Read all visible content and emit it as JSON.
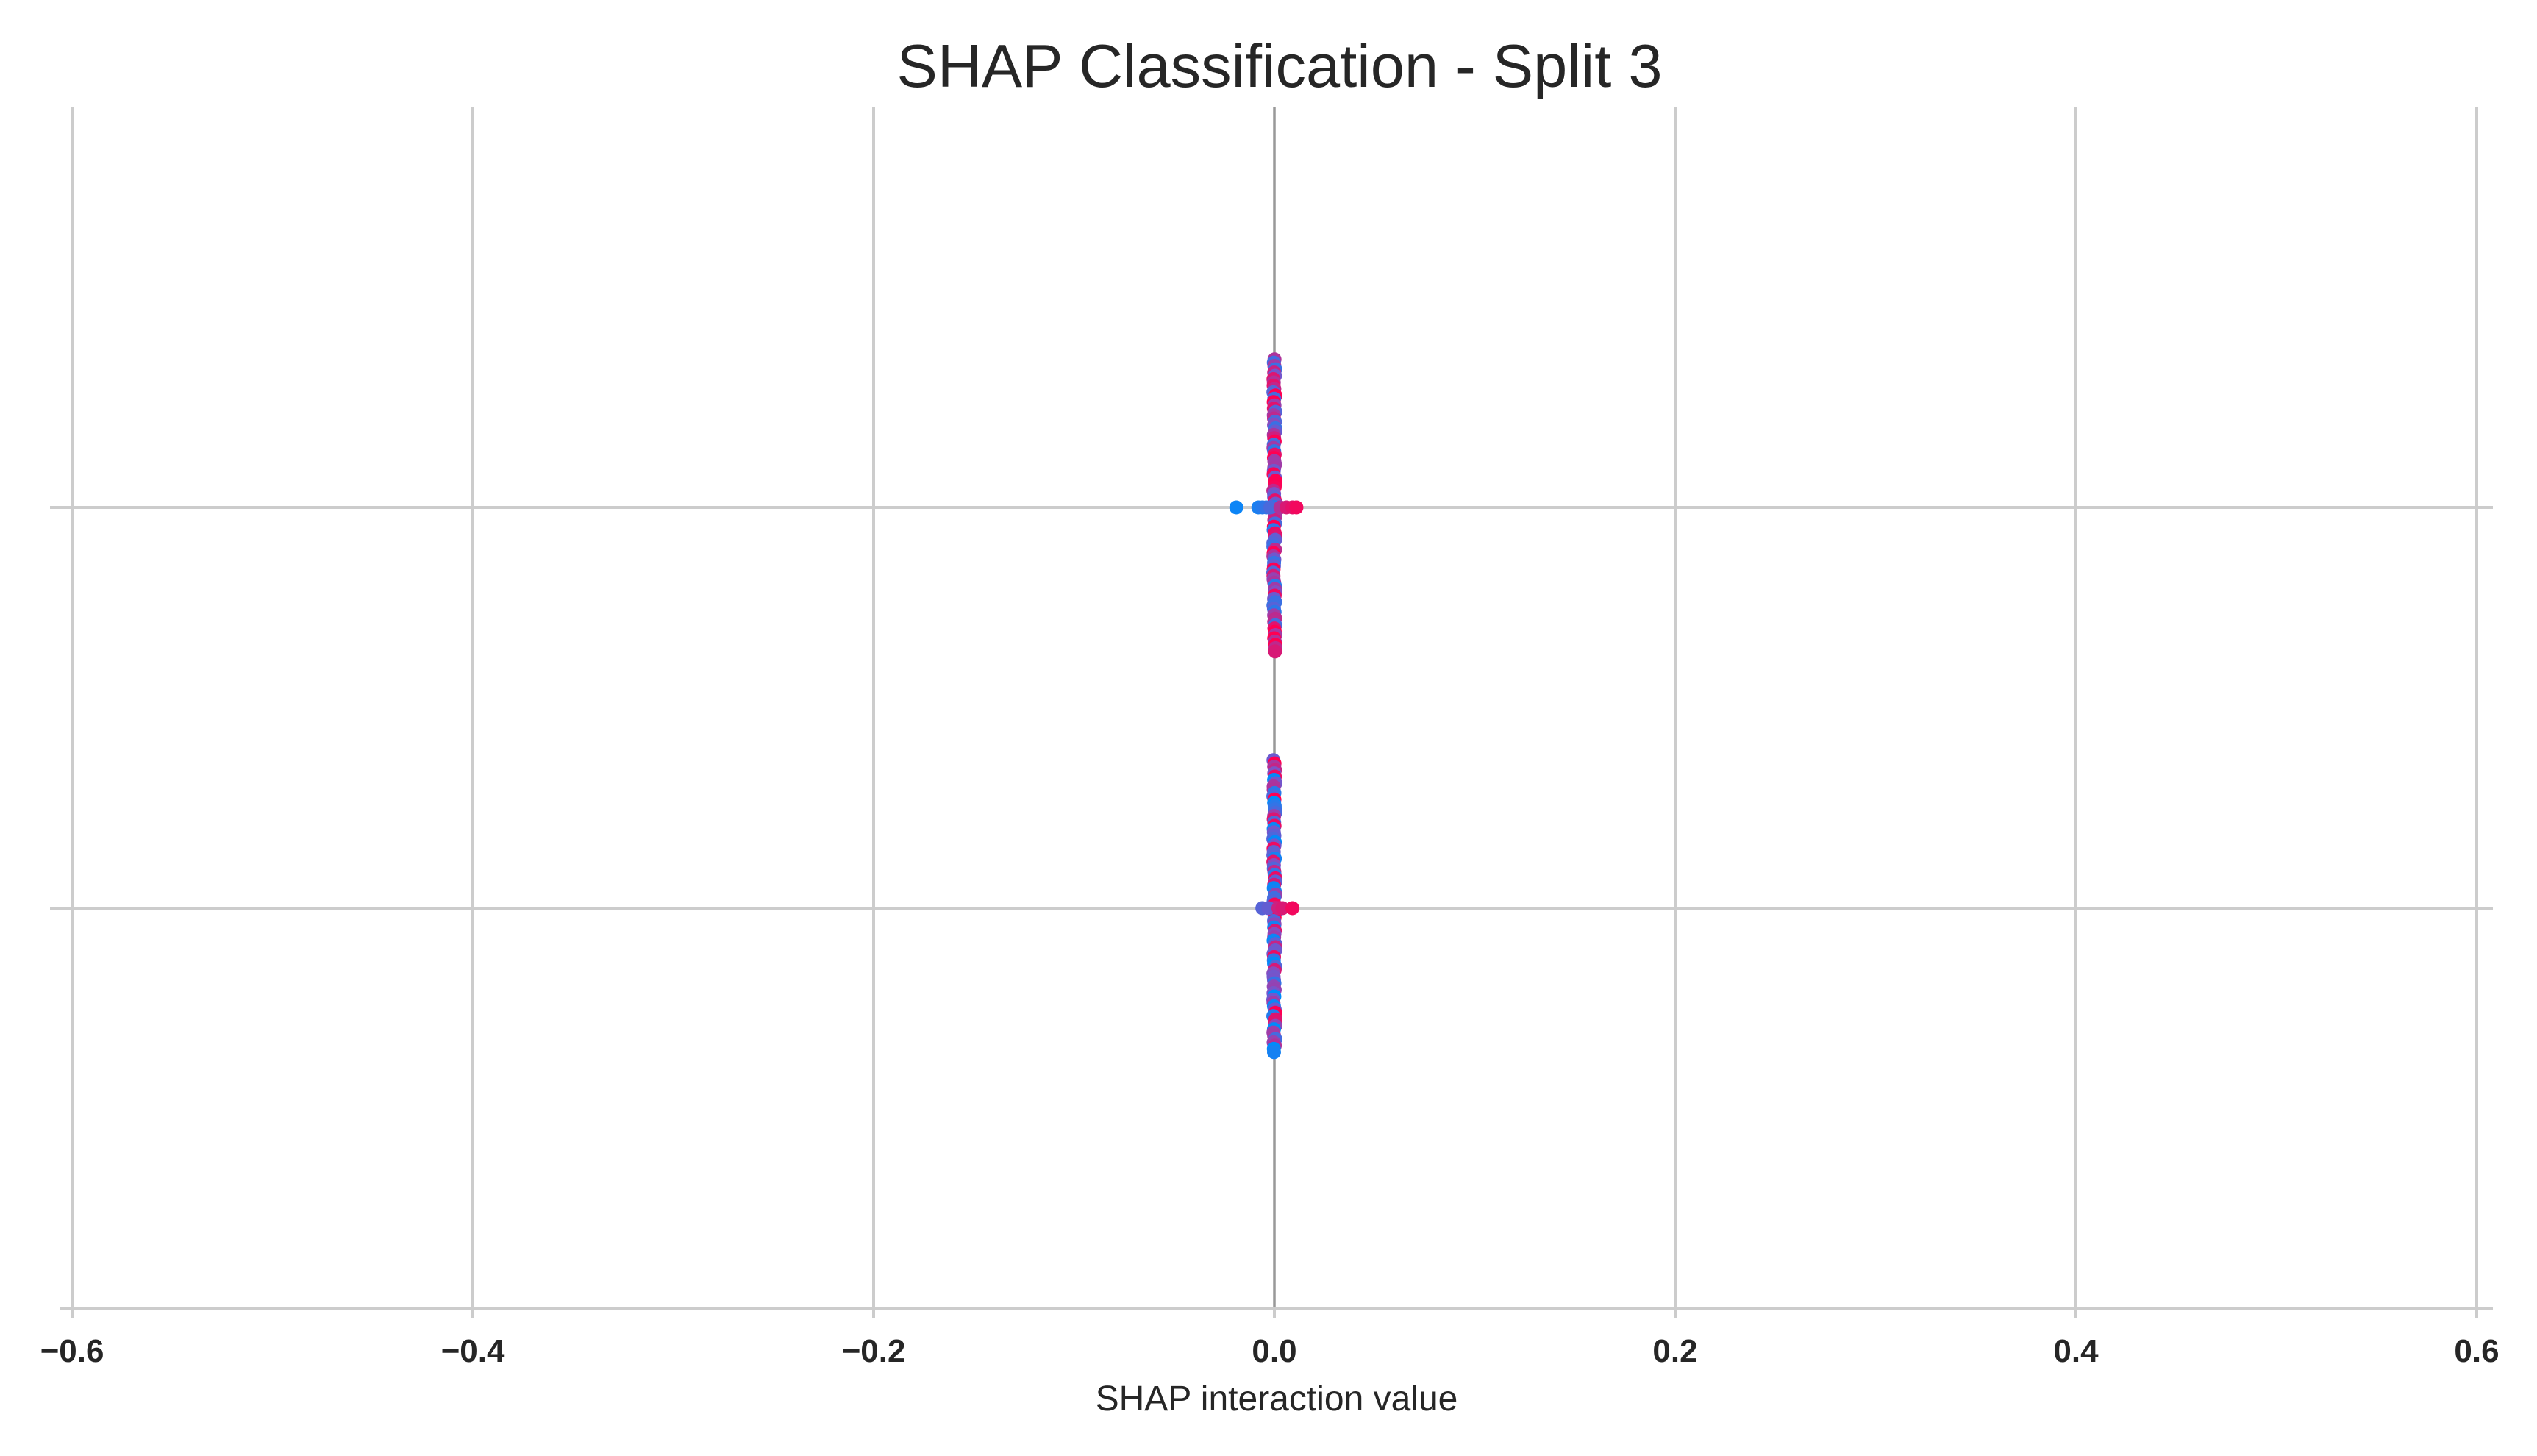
{
  "chart_data": {
    "type": "scatter",
    "subtype": "shap-beeswarm",
    "title": "SHAP Classification - Split 3",
    "xlabel": "SHAP interaction value",
    "ylabel": "",
    "xlim": [
      -0.6,
      0.6
    ],
    "xticks": [
      -0.6,
      -0.4,
      -0.2,
      0.0,
      0.2,
      0.4,
      0.6
    ],
    "xtick_labels": [
      "−0.6",
      "−0.4",
      "−0.2",
      "0.0",
      "0.2",
      "0.4",
      "0.6"
    ],
    "grid": true,
    "colors": {
      "low": "#008bfb",
      "high": "#ff0052",
      "grid": "#cccccc",
      "text": "#262626"
    },
    "rows": [
      {
        "points": [
          {
            "x": -0.019,
            "c": 0.05
          },
          {
            "x": -0.008,
            "c": 0.1
          },
          {
            "x": -0.006,
            "c": 0.15
          },
          {
            "x": -0.004,
            "c": 0.2
          },
          {
            "x": -0.002,
            "c": 0.3
          },
          {
            "x": 0.003,
            "c": 0.7
          },
          {
            "x": 0.006,
            "c": 0.85
          },
          {
            "x": 0.009,
            "c": 0.9
          },
          {
            "x": 0.011,
            "c": 0.95
          }
        ],
        "stack_count": 90,
        "stack_extent": [
          -0.37,
          0.36
        ],
        "stack_color_bias": 0.7
      },
      {
        "points": [
          {
            "x": -0.006,
            "c": 0.35
          },
          {
            "x": -0.003,
            "c": 0.4
          },
          {
            "x": 0.002,
            "c": 0.8
          },
          {
            "x": 0.004,
            "c": 0.85
          },
          {
            "x": 0.009,
            "c": 0.95
          }
        ],
        "stack_count": 90,
        "stack_extent": [
          -0.37,
          0.36
        ],
        "stack_color_bias": 0.5
      }
    ]
  }
}
